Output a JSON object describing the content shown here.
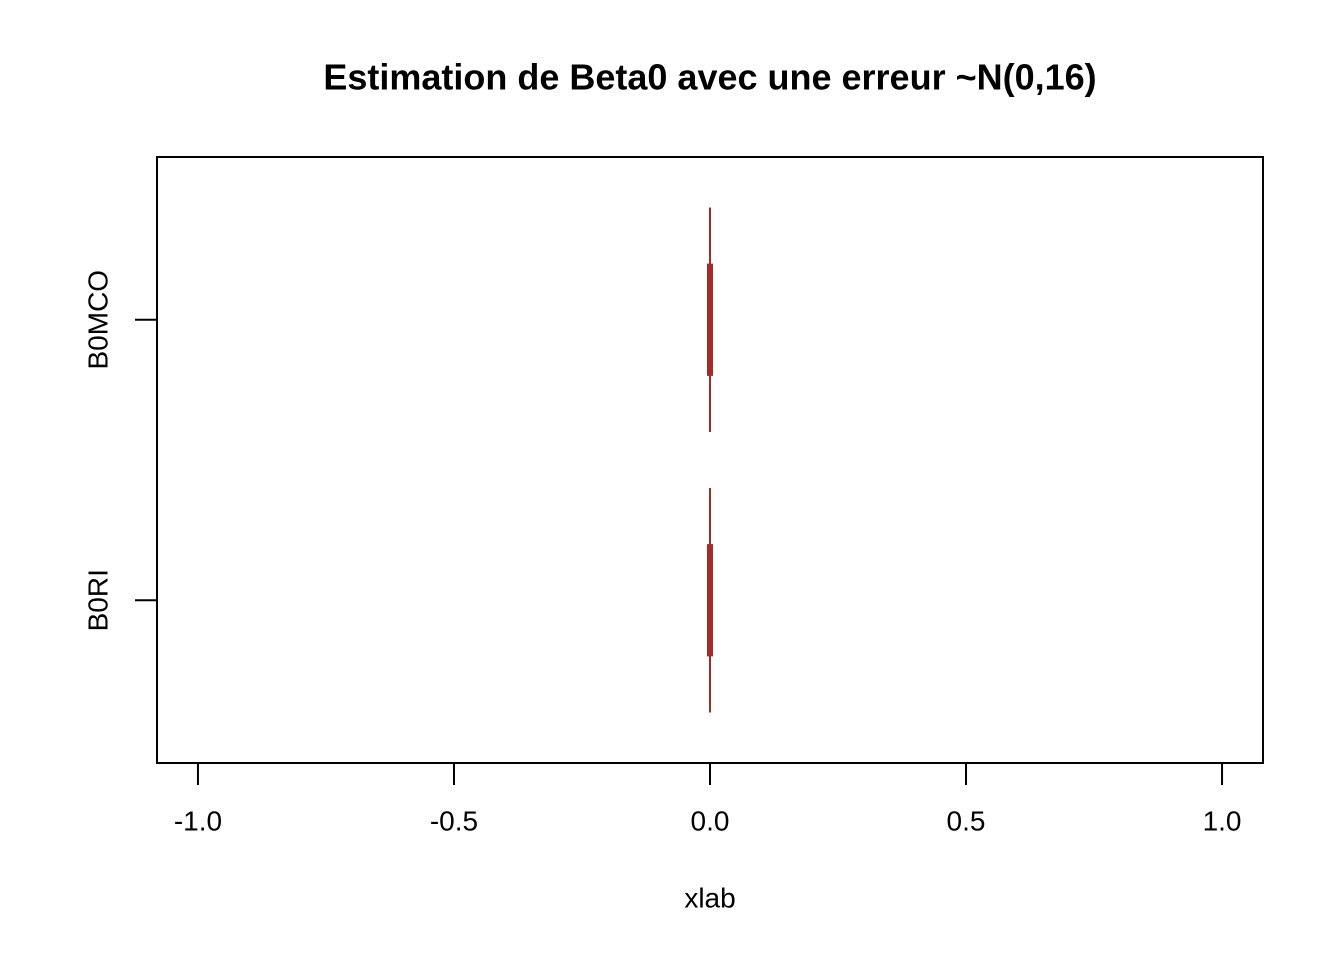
{
  "chart_data": {
    "type": "boxplot",
    "orientation": "horizontal",
    "title": "Estimation de Beta0 avec une erreur ~N(0,16)",
    "x_label": "xlab",
    "categories": [
      "B0RI",
      "B0MCO"
    ],
    "color": "#a52a2a",
    "boxes": [
      {
        "min": 0,
        "q1": 0,
        "median": 0,
        "q3": 0,
        "max": 0
      },
      {
        "min": 0,
        "q1": 0,
        "median": 0,
        "q3": 0,
        "max": 0
      }
    ],
    "xlim": [
      -1.08,
      1.08
    ],
    "xticks": [
      {
        "value": -1,
        "label": "-1.0"
      },
      {
        "value": -0.5,
        "label": "-0.5"
      },
      {
        "value": 0,
        "label": "0.0"
      },
      {
        "value": 0.5,
        "label": "0.5"
      },
      {
        "value": 1,
        "label": "1.0"
      }
    ]
  }
}
